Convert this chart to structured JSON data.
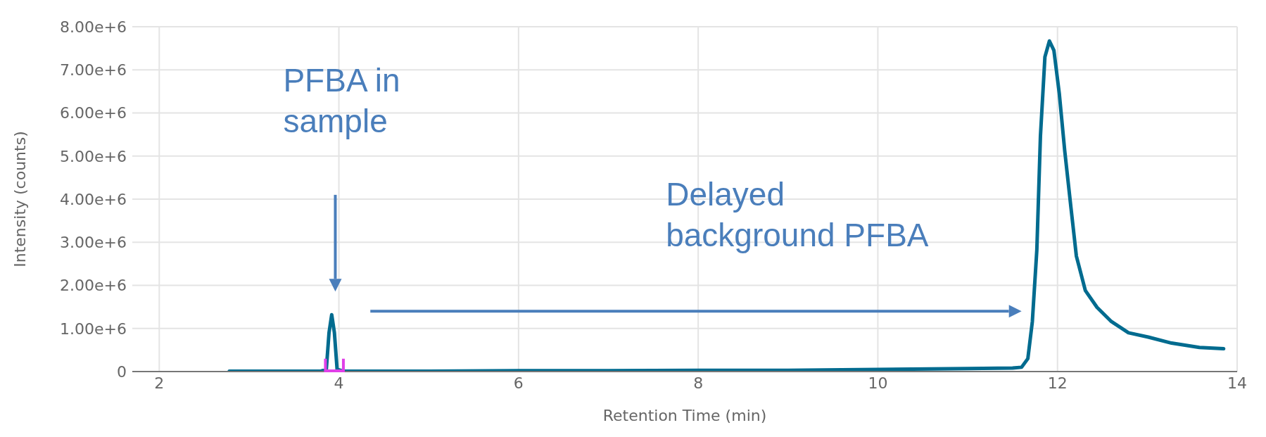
{
  "chart_data": {
    "type": "line",
    "xlabel": "Retention Time (min)",
    "ylabel": "Intensity (counts)",
    "x": [
      2.78,
      3.5,
      3.8,
      3.86,
      3.89,
      3.92,
      3.95,
      3.98,
      4.05,
      5,
      6,
      7,
      8,
      9,
      10,
      11,
      11.5,
      11.6,
      11.67,
      11.72,
      11.77,
      11.81,
      11.86,
      11.91,
      11.96,
      12.02,
      12.08,
      12.15,
      12.21,
      12.31,
      12.44,
      12.6,
      12.79,
      13.01,
      13.27,
      13.58,
      13.85
    ],
    "series": [
      {
        "color": "#006b8f",
        "values": [
          10000,
          10000,
          10000,
          50000,
          900000,
          1320000,
          900000,
          50000,
          10000,
          10000,
          20000,
          20000,
          30000,
          30000,
          50000,
          70000,
          80000,
          100000,
          300000,
          1160000,
          2820000,
          5460000,
          7300000,
          7670000,
          7450000,
          6450000,
          5130000,
          3800000,
          2680000,
          1880000,
          1490000,
          1160000,
          900000,
          800000,
          660000,
          560000,
          530000
        ]
      }
    ],
    "xlim": [
      1.7,
      14
    ],
    "xticks": [
      2,
      4,
      6,
      8,
      10,
      12,
      14
    ],
    "ylim": [
      0,
      8000000
    ],
    "yticks": [
      0,
      {
        "value": 1000000,
        "label": "1.00e+6"
      },
      {
        "value": 2000000,
        "label": "2.00e+6"
      },
      {
        "value": 3000000,
        "label": "3.00e+6"
      },
      {
        "value": 4000000,
        "label": "4.00e+6"
      },
      {
        "value": 5000000,
        "label": "5.00e+6"
      },
      {
        "value": 6000000,
        "label": "6.00e+6"
      },
      {
        "value": 7000000,
        "label": "7.00e+6"
      },
      {
        "value": 8000000,
        "label": "8.00e+6"
      }
    ],
    "grid": true,
    "marker": "none",
    "line_style": "solid",
    "annotations": [
      "PFBA in sample",
      "Delayed background PFBA"
    ]
  }
}
